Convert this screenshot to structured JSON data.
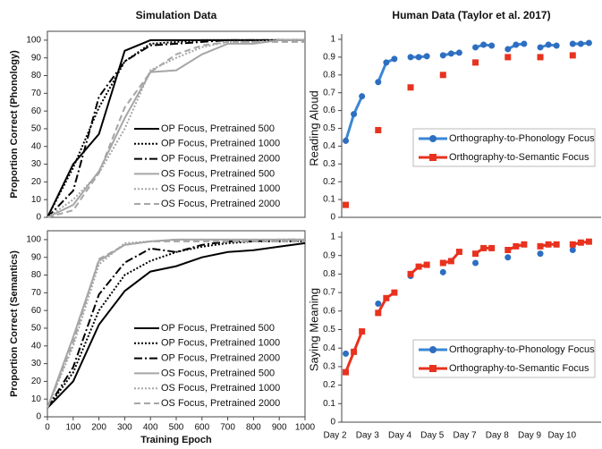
{
  "chart_data": [
    {
      "type": "line",
      "title": "Simulation Data",
      "ylabel": "Proportion Correct (Phonology)",
      "x": [
        0,
        100,
        200,
        300,
        400,
        500,
        600,
        700,
        800,
        900,
        1000
      ],
      "xlim": [
        0,
        1000
      ],
      "ylim": [
        0,
        105
      ],
      "yticks": [
        0,
        10,
        20,
        30,
        40,
        50,
        60,
        70,
        80,
        90,
        100
      ],
      "legend": "lower right",
      "series": [
        {
          "name": "OP Focus, Pretrained 500",
          "color": "#000000",
          "style": "solid",
          "values": [
            0,
            30,
            47,
            94,
            100,
            100,
            100,
            100,
            100,
            100,
            100
          ]
        },
        {
          "name": "OP Focus, Pretrained 1000",
          "color": "#000000",
          "style": "dotted",
          "values": [
            0,
            28,
            62,
            88,
            98,
            99,
            100,
            100,
            100,
            100,
            100
          ]
        },
        {
          "name": "OP Focus, Pretrained 2000",
          "color": "#000000",
          "style": "dashdot",
          "values": [
            0,
            15,
            68,
            88,
            97,
            98,
            99,
            100,
            100,
            100,
            100
          ]
        },
        {
          "name": "OS Focus, Pretrained 500",
          "color": "#a6a6a6",
          "style": "solid",
          "values": [
            0,
            7,
            26,
            56,
            82,
            83,
            92,
            98,
            98,
            100,
            100
          ]
        },
        {
          "name": "OS Focus, Pretrained 1000",
          "color": "#a6a6a6",
          "style": "dotted",
          "values": [
            0,
            10,
            25,
            50,
            83,
            90,
            96,
            99,
            99,
            100,
            100
          ]
        },
        {
          "name": "OS Focus, Pretrained 2000",
          "color": "#a6a6a6",
          "style": "dashed",
          "values": [
            0,
            4,
            25,
            62,
            82,
            92,
            97,
            99,
            99,
            99,
            99
          ]
        }
      ]
    },
    {
      "type": "category-line",
      "title": "Human Data (Taylor et al. 2017)",
      "ylabel": "Reading Aloud",
      "categories": [
        null,
        null,
        null,
        null,
        null,
        null,
        null,
        null,
        null,
        null,
        null,
        null,
        null,
        null,
        null,
        null,
        null,
        null,
        null,
        null,
        null,
        null,
        null,
        null,
        null,
        null,
        null,
        null,
        null,
        null,
        null,
        null
      ],
      "ylim": [
        0,
        1
      ],
      "yticks": [
        0,
        0.1,
        0.2,
        0.3,
        0.4,
        0.5,
        0.6,
        0.7,
        0.8,
        0.9,
        1
      ],
      "legend": "center right",
      "series": [
        {
          "name": "Orthography-to-Phonology Focus",
          "color": "#3a87d4",
          "marker": "circle",
          "values": [
            0.43,
            0.58,
            0.68,
            null,
            0.76,
            0.87,
            0.89,
            null,
            0.9,
            0.9,
            0.905,
            null,
            0.91,
            0.92,
            0.925,
            null,
            0.955,
            0.97,
            0.965,
            null,
            0.945,
            0.97,
            0.975,
            null,
            0.955,
            0.97,
            0.965,
            null,
            0.975,
            0.975,
            0.98,
            null
          ]
        },
        {
          "name": "Orthography-to-Semantic Focus",
          "color": "#e8321e",
          "marker": "square",
          "values": [
            0.07,
            null,
            null,
            null,
            0.49,
            null,
            null,
            null,
            0.73,
            null,
            null,
            null,
            0.8,
            null,
            null,
            null,
            0.87,
            null,
            null,
            null,
            0.9,
            null,
            null,
            null,
            0.9,
            null,
            null,
            null,
            0.91,
            null,
            null,
            null
          ]
        }
      ]
    },
    {
      "type": "line",
      "ylabel": "Proportion Correct (Semantics)",
      "xlabel": "Training Epoch",
      "x": [
        0,
        100,
        200,
        300,
        400,
        500,
        600,
        700,
        800,
        900,
        1000
      ],
      "xlim": [
        0,
        1000
      ],
      "xticks": [
        0,
        100,
        200,
        300,
        400,
        500,
        600,
        700,
        800,
        900,
        1000
      ],
      "ylim": [
        0,
        105
      ],
      "yticks": [
        0,
        10,
        20,
        30,
        40,
        50,
        60,
        70,
        80,
        90,
        100
      ],
      "legend": "lower right",
      "series": [
        {
          "name": "OP Focus, Pretrained 500",
          "color": "#000000",
          "style": "solid",
          "values": [
            5,
            20,
            52,
            71,
            82,
            85,
            90,
            93,
            94,
            96,
            98
          ]
        },
        {
          "name": "OP Focus, Pretrained 1000",
          "color": "#000000",
          "style": "dotted",
          "values": [
            5,
            25,
            60,
            80,
            88,
            93,
            96,
            98,
            99,
            99,
            99
          ]
        },
        {
          "name": "OP Focus, Pretrained 2000",
          "color": "#000000",
          "style": "dashdot",
          "values": [
            5,
            28,
            69,
            87,
            95,
            93,
            97,
            99,
            99,
            100,
            100
          ]
        },
        {
          "name": "OS Focus, Pretrained 500",
          "color": "#a6a6a6",
          "style": "solid",
          "values": [
            5,
            45,
            88,
            97,
            99,
            100,
            100,
            100,
            100,
            100,
            100
          ]
        },
        {
          "name": "OS Focus, Pretrained 1000",
          "color": "#a6a6a6",
          "style": "dotted",
          "values": [
            5,
            40,
            86,
            98,
            99,
            100,
            100,
            100,
            100,
            100,
            100
          ]
        },
        {
          "name": "OS Focus, Pretrained 2000",
          "color": "#a6a6a6",
          "style": "dashed",
          "values": [
            5,
            42,
            89,
            97,
            99,
            99,
            99,
            99,
            99,
            99,
            99
          ]
        }
      ]
    },
    {
      "type": "category-line",
      "ylabel": "Saying Meaning",
      "categories": [
        "Day 2",
        null,
        null,
        null,
        "Day 3",
        null,
        null,
        null,
        "Day 4",
        null,
        null,
        null,
        "Day 5",
        null,
        null,
        null,
        "Day 7",
        null,
        null,
        null,
        "Day 8",
        null,
        null,
        null,
        "Day 9",
        null,
        null,
        null,
        "Day 10",
        null,
        null,
        null
      ],
      "ylim": [
        0,
        1
      ],
      "yticks": [
        0,
        0.1,
        0.2,
        0.3,
        0.4,
        0.5,
        0.6,
        0.7,
        0.8,
        0.9,
        1
      ],
      "legend": "lower right",
      "series": [
        {
          "name": "Orthography-to-Phonology Focus",
          "color": "#3a87d4",
          "marker": "circle",
          "values": [
            0.37,
            null,
            null,
            null,
            0.64,
            null,
            null,
            null,
            0.79,
            null,
            null,
            null,
            0.81,
            null,
            null,
            null,
            0.86,
            null,
            null,
            null,
            0.89,
            null,
            null,
            null,
            0.91,
            null,
            null,
            null,
            0.93,
            null,
            null,
            null
          ]
        },
        {
          "name": "Orthography-to-Semantic Focus",
          "color": "#e8321e",
          "marker": "square",
          "values": [
            0.27,
            0.38,
            0.49,
            null,
            0.59,
            0.67,
            0.7,
            null,
            0.8,
            0.84,
            0.85,
            null,
            0.86,
            0.87,
            0.92,
            null,
            0.91,
            0.94,
            0.94,
            null,
            0.93,
            0.95,
            0.96,
            null,
            0.95,
            0.96,
            0.96,
            null,
            0.96,
            0.97,
            0.975,
            null
          ]
        }
      ]
    }
  ]
}
